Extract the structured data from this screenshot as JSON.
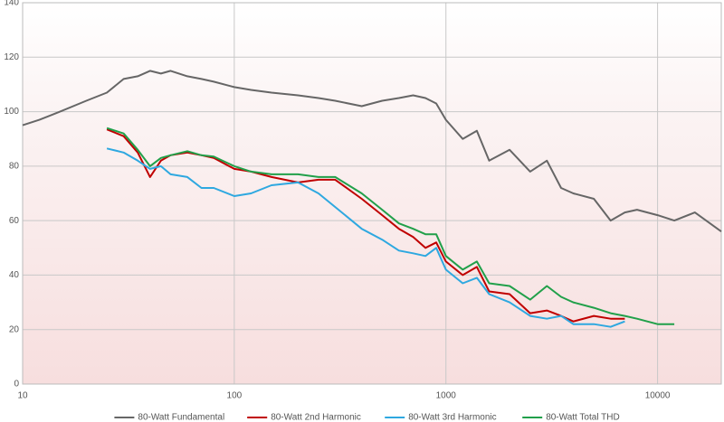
{
  "chart_data": {
    "type": "line",
    "xscale": "log",
    "grid": true,
    "legend": "bottom",
    "x": [
      10,
      12,
      15,
      20,
      25,
      30,
      35,
      40,
      45,
      50,
      60,
      70,
      80,
      100,
      120,
      150,
      200,
      250,
      300,
      400,
      500,
      600,
      700,
      800,
      900,
      1000,
      1200,
      1400,
      1600,
      2000,
      2500,
      3000,
      3500,
      4000,
      5000,
      6000,
      7000,
      8000,
      10000,
      12000,
      15000,
      20000
    ],
    "xlim": [
      10,
      20000
    ],
    "xticks": [
      10,
      100,
      1000,
      10000
    ],
    "ylim": [
      0,
      140
    ],
    "yticks": [
      0,
      20,
      40,
      60,
      80,
      100,
      120,
      140
    ],
    "series": [
      {
        "name": "80-Watt Fundamental",
        "color": "#666666",
        "values": [
          95,
          97,
          100,
          104,
          107,
          112,
          113,
          115,
          114,
          115,
          113,
          112,
          111,
          109,
          108,
          107,
          106,
          105,
          104,
          102,
          104,
          105,
          106,
          105,
          103,
          97,
          90,
          93,
          82,
          86,
          78,
          82,
          72,
          70,
          68,
          60,
          63,
          64,
          62,
          60,
          63,
          56
        ]
      },
      {
        "name": "80-Watt 2nd Harmonic",
        "color": "#c00000",
        "values": [
          null,
          null,
          null,
          null,
          93.5,
          91,
          85,
          76,
          82,
          84,
          85,
          84,
          83,
          79,
          78,
          76,
          74,
          75,
          75,
          68,
          62,
          57,
          54,
          50,
          52,
          45,
          40,
          43,
          34,
          33,
          26,
          27,
          25,
          23,
          25,
          24,
          24,
          null,
          null,
          null,
          null,
          null
        ]
      },
      {
        "name": "80-Watt 3rd Harmonic",
        "color": "#2ea8e0",
        "values": [
          null,
          null,
          null,
          null,
          86.5,
          85,
          82,
          79,
          80,
          77,
          76,
          72,
          72,
          69,
          70,
          73,
          74,
          70,
          65,
          57,
          53,
          49,
          48,
          47,
          50,
          42,
          37,
          39,
          33,
          30,
          25,
          24,
          25,
          22,
          22,
          21,
          23,
          null,
          null,
          null,
          null,
          null
        ]
      },
      {
        "name": "80-Watt Total THD",
        "color": "#21a04a",
        "values": [
          null,
          null,
          null,
          null,
          94,
          92,
          86,
          80,
          83,
          84,
          85.5,
          84,
          83.5,
          80,
          78,
          77,
          77,
          76,
          76,
          70,
          64,
          59,
          57,
          55,
          55,
          47,
          42,
          45,
          37,
          36,
          31,
          36,
          32,
          30,
          28,
          26,
          25,
          24,
          22,
          22,
          null,
          null
        ]
      }
    ]
  }
}
